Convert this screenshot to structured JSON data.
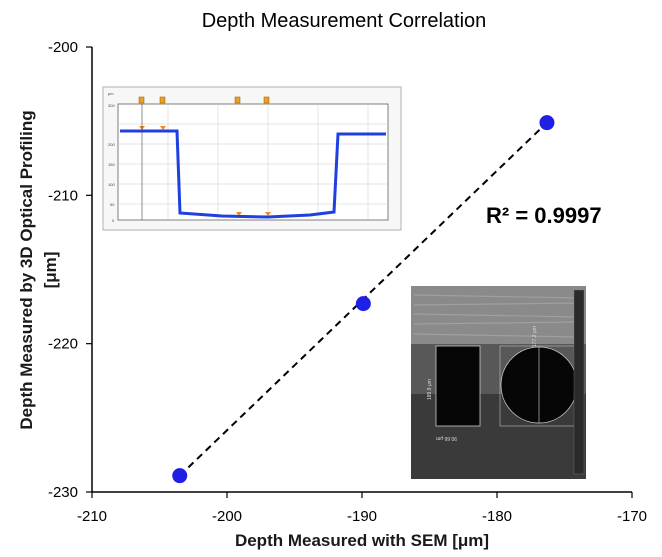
{
  "chart_data": {
    "type": "scatter",
    "title": "Depth Measurement Correlation",
    "xlabel": "Depth Measured with SEM [μm]",
    "ylabel_line1": "Depth Measured by 3D Optical Profiling",
    "ylabel_line2": "[μm]",
    "xlim": [
      -210,
      -170
    ],
    "ylim": [
      -230,
      -200
    ],
    "x_ticks": [
      -210,
      -200,
      -190,
      -180,
      -170
    ],
    "y_ticks": [
      -200,
      -210,
      -220,
      -230
    ],
    "series": [
      {
        "x": [
          -203.5,
          -189.9,
          -176.3
        ],
        "y": [
          -228.9,
          -217.3,
          -205.1
        ],
        "color": "#1f1fe6",
        "trendline": "dashed"
      }
    ],
    "annotation": "R² = 0.9997",
    "grid": false,
    "legend": "none"
  },
  "inset_profile": {
    "y_unit": "μm",
    "y_ticks": [
      "200",
      "150",
      "100",
      "50",
      "0"
    ],
    "y_top": "300",
    "line_color": "#1f3fe0"
  },
  "inset_sem": {
    "label_vertical": "189.9 μm",
    "label_width": "90.66 μm",
    "label_diag": "177.2 μm"
  }
}
